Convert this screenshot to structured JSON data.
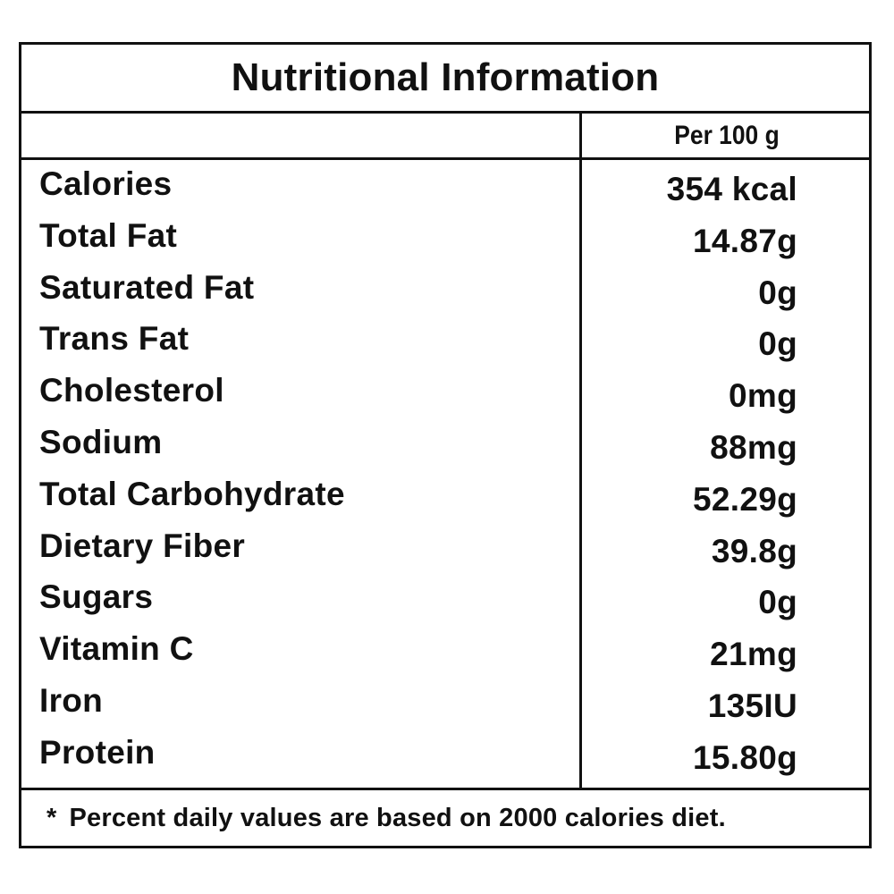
{
  "title": "Nutritional Information",
  "column_header": "Per 100 g",
  "rows": [
    {
      "nutrient": "Calories",
      "amount": "354 kcal"
    },
    {
      "nutrient": "Total Fat",
      "amount": "14.87g"
    },
    {
      "nutrient": "Saturated Fat",
      "amount": "0g"
    },
    {
      "nutrient": "Trans Fat",
      "amount": "0g"
    },
    {
      "nutrient": "Cholesterol",
      "amount": "0mg"
    },
    {
      "nutrient": "Sodium",
      "amount": "88mg"
    },
    {
      "nutrient": "Total Carbohydrate",
      "amount": "52.29g"
    },
    {
      "nutrient": "Dietary Fiber",
      "amount": "39.8g"
    },
    {
      "nutrient": "Sugars",
      "amount": "0g"
    },
    {
      "nutrient": "Vitamin C",
      "amount": "21mg"
    },
    {
      "nutrient": "Iron",
      "amount": "135IU"
    },
    {
      "nutrient": "Protein",
      "amount": "15.80g"
    }
  ],
  "footnote": {
    "marker": "*",
    "text": "Percent daily values are based on 2000 calories diet."
  }
}
